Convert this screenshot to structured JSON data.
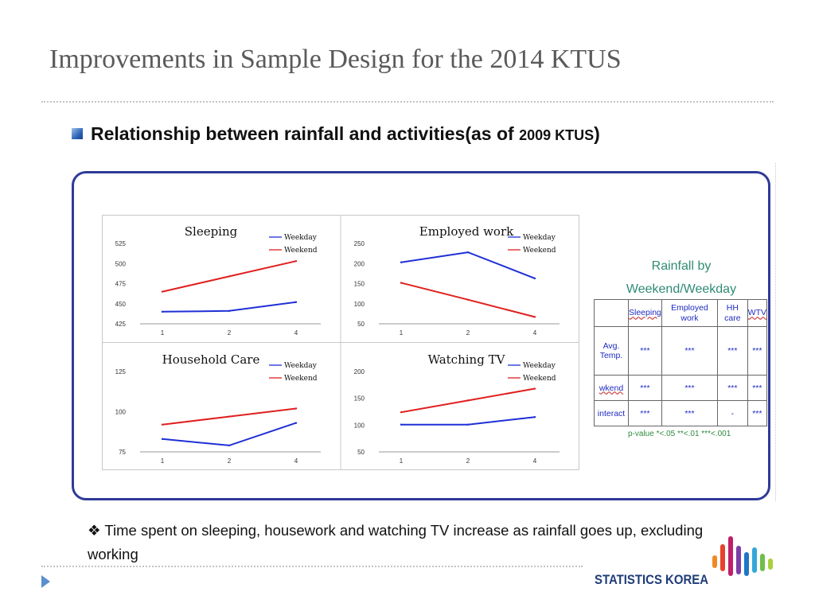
{
  "slide": {
    "title": "Improvements in Sample Design for the 2014 KTUS",
    "subtitle_main": "Relationship between rainfall  and activities(as of ",
    "subtitle_year": "2009 KTUS",
    "subtitle_close": ")"
  },
  "chart_data": [
    {
      "type": "line",
      "title": "Sleeping",
      "categories": [
        "1",
        "2",
        "4"
      ],
      "ylim": [
        425,
        525
      ],
      "yticks": [
        425,
        450,
        475,
        500,
        525
      ],
      "legend_position": "top-right",
      "series": [
        {
          "name": "Weekday",
          "color": "#1e2fd6",
          "values": [
            440,
            441,
            452
          ]
        },
        {
          "name": "Weekend",
          "color": "#e02020",
          "values": [
            465,
            484,
            503
          ]
        }
      ]
    },
    {
      "type": "line",
      "title": "Employed work",
      "categories": [
        "1",
        "2",
        "4"
      ],
      "ylim": [
        50,
        250
      ],
      "yticks": [
        50,
        100,
        150,
        200,
        250
      ],
      "legend_position": "top-right",
      "series": [
        {
          "name": "Weekday",
          "color": "#1e2fd6",
          "values": [
            203,
            228,
            163
          ]
        },
        {
          "name": "Weekend",
          "color": "#e02020",
          "values": [
            152,
            110,
            67
          ]
        }
      ]
    },
    {
      "type": "line",
      "title": "Household Care",
      "categories": [
        "1",
        "2",
        "4"
      ],
      "ylim": [
        75,
        125
      ],
      "yticks": [
        75,
        100,
        125
      ],
      "legend_position": "top-right",
      "series": [
        {
          "name": "Weekday",
          "color": "#1e2fd6",
          "values": [
            83,
            79,
            93
          ]
        },
        {
          "name": "Weekend",
          "color": "#e02020",
          "values": [
            92,
            97,
            102
          ]
        }
      ]
    },
    {
      "type": "line",
      "title": "Watching TV",
      "categories": [
        "1",
        "2",
        "4"
      ],
      "ylim": [
        50,
        200
      ],
      "yticks": [
        50,
        100,
        150,
        200
      ],
      "legend_position": "top-right",
      "series": [
        {
          "name": "Weekday",
          "color": "#1e2fd6",
          "values": [
            101,
            101,
            115
          ]
        },
        {
          "name": "Weekend",
          "color": "#e02020",
          "values": [
            124,
            146,
            168
          ]
        }
      ]
    },
    {
      "type": "table",
      "title_line1": "Rainfall by",
      "title_line2": "Weekend/Weekday",
      "columns": [
        "",
        "Sleeping",
        "Employed work",
        "HH care",
        "WTV"
      ],
      "rows": [
        {
          "label": "Avg. Temp.",
          "cells": [
            "***",
            "***",
            "***",
            "***"
          ]
        },
        {
          "label": "wkend",
          "cells": [
            "***",
            "***",
            "***",
            "***"
          ]
        },
        {
          "label": "interact",
          "cells": [
            "***",
            "***",
            "-",
            "***"
          ]
        }
      ],
      "footnote": "p-value *<.05 **<.01 ***<.001"
    }
  ],
  "note": {
    "bullet": "❖",
    "text": "Time spent on sleeping, housework and watching TV increase as rainfall goes up, excluding working"
  },
  "logo": {
    "text": "STATISTICS KOREA",
    "bar_colors": [
      "#f08a24",
      "#e8422a",
      "#c01f6a",
      "#7d3fa6",
      "#1f76c7",
      "#35a7d8",
      "#6fbf4a",
      "#a8cf3d"
    ]
  }
}
